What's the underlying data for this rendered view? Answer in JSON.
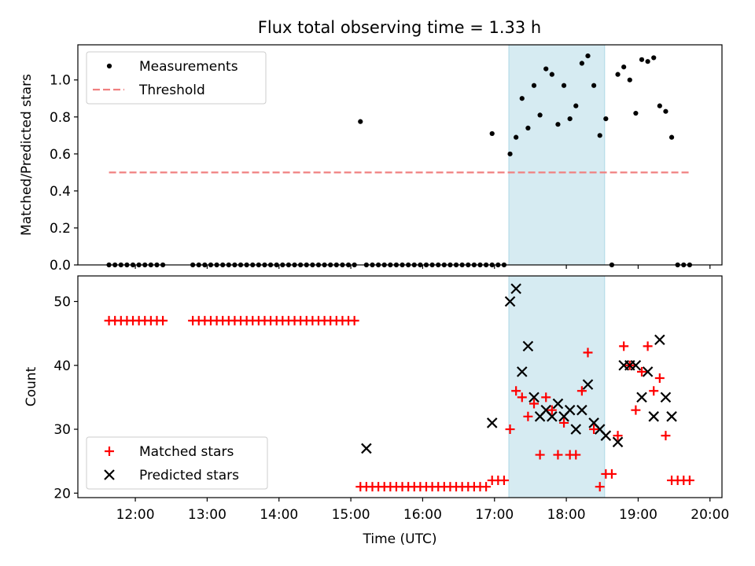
{
  "figure": {
    "title": "Flux total observing time = 1.33 h"
  },
  "chart_data": [
    {
      "type": "scatter",
      "ylabel": "Matched/Predicted stars",
      "xlabel": "",
      "xlim": [
        "11:12",
        "20:10"
      ],
      "ylim": [
        0,
        1.19
      ],
      "yticks": [
        0.0,
        0.2,
        0.4,
        0.6,
        0.8,
        1.0
      ],
      "ytick_labels": [
        "0.0",
        "0.2",
        "0.4",
        "0.6",
        "0.8",
        "1.0"
      ],
      "shaded_span": [
        "17:12",
        "18:32"
      ],
      "legend": {
        "placement": "upper left",
        "entries": [
          "Measurements",
          "Threshold"
        ]
      },
      "series": [
        {
          "name": "Measurements",
          "marker": "dot",
          "color": "#000000",
          "x": [
            "11:38",
            "11:43",
            "11:48",
            "11:53",
            "11:58",
            "12:03",
            "12:08",
            "12:13",
            "12:18",
            "12:23",
            "12:48",
            "12:53",
            "12:58",
            "13:03",
            "13:08",
            "13:13",
            "13:18",
            "13:23",
            "13:28",
            "13:33",
            "13:38",
            "13:43",
            "13:48",
            "13:53",
            "13:58",
            "14:03",
            "14:08",
            "14:13",
            "14:18",
            "14:23",
            "14:28",
            "14:33",
            "14:38",
            "14:43",
            "14:48",
            "14:53",
            "14:58",
            "15:03",
            "15:08",
            "15:13",
            "15:18",
            "15:23",
            "15:28",
            "15:33",
            "15:38",
            "15:43",
            "15:48",
            "15:53",
            "15:58",
            "16:03",
            "16:08",
            "16:13",
            "16:18",
            "16:23",
            "16:28",
            "16:33",
            "16:38",
            "16:43",
            "16:48",
            "16:53",
            "16:58",
            "17:03",
            "17:08",
            "16:58",
            "17:13",
            "17:18",
            "17:23",
            "17:28",
            "17:33",
            "17:38",
            "17:43",
            "17:48",
            "17:53",
            "17:58",
            "18:03",
            "18:08",
            "18:13",
            "18:18",
            "18:23",
            "18:28",
            "18:33",
            "18:38",
            "18:43",
            "18:48",
            "18:53",
            "18:58",
            "19:03",
            "19:08",
            "19:13",
            "19:18",
            "19:23",
            "19:28",
            "19:33",
            "19:38",
            "19:43"
          ],
          "y": [
            0,
            0,
            0,
            0,
            0,
            0,
            0,
            0,
            0,
            0,
            0,
            0,
            0,
            0,
            0,
            0,
            0,
            0,
            0,
            0,
            0,
            0,
            0,
            0,
            0,
            0,
            0,
            0,
            0,
            0,
            0,
            0,
            0,
            0,
            0,
            0,
            0,
            0,
            0.775,
            0,
            0,
            0,
            0,
            0,
            0,
            0,
            0,
            0,
            0,
            0,
            0,
            0,
            0,
            0,
            0,
            0,
            0,
            0,
            0,
            0,
            0,
            0,
            0,
            0.71,
            0.6,
            0.69,
            0.9,
            0.74,
            0.97,
            0.81,
            1.06,
            1.03,
            0.76,
            0.97,
            0.79,
            0.86,
            1.09,
            1.13,
            0.97,
            0.7,
            0.79,
            0,
            1.03,
            1.07,
            1.0,
            0.82,
            1.11,
            1.1,
            1.12,
            0.86,
            0.83,
            0.69,
            0,
            0,
            0
          ]
        },
        {
          "name": "Threshold",
          "style": "dashed-line",
          "color": "#f08080",
          "x": [
            "11:38",
            "19:43"
          ],
          "y": [
            0.5,
            0.5
          ]
        }
      ]
    },
    {
      "type": "scatter",
      "ylabel": "Count",
      "xlabel": "Time (UTC)",
      "xlim": [
        "11:12",
        "20:10"
      ],
      "ylim": [
        19.3,
        54
      ],
      "yticks": [
        20,
        30,
        40,
        50
      ],
      "ytick_labels": [
        "20",
        "30",
        "40",
        "50"
      ],
      "xticks": [
        "12:00",
        "13:00",
        "14:00",
        "15:00",
        "16:00",
        "17:00",
        "18:00",
        "19:00",
        "20:00"
      ],
      "xtick_labels": [
        "12:00",
        "13:00",
        "14:00",
        "15:00",
        "16:00",
        "17:00",
        "18:00",
        "19:00",
        "20:00"
      ],
      "shaded_span": [
        "17:12",
        "18:32"
      ],
      "legend": {
        "placement": "lower left",
        "entries": [
          "Matched stars",
          "Predicted stars"
        ]
      },
      "series": [
        {
          "name": "Matched stars",
          "marker": "plus",
          "color": "#ff0000",
          "x": [
            "11:38",
            "11:43",
            "11:48",
            "11:53",
            "11:58",
            "12:03",
            "12:08",
            "12:13",
            "12:18",
            "12:23",
            "12:48",
            "12:53",
            "12:58",
            "13:03",
            "13:08",
            "13:13",
            "13:18",
            "13:23",
            "13:28",
            "13:33",
            "13:38",
            "13:43",
            "13:48",
            "13:53",
            "13:58",
            "14:03",
            "14:08",
            "14:13",
            "14:18",
            "14:23",
            "14:28",
            "14:33",
            "14:38",
            "14:43",
            "14:48",
            "14:53",
            "14:58",
            "15:03",
            "15:08",
            "15:13",
            "15:18",
            "15:23",
            "15:28",
            "15:33",
            "15:38",
            "15:43",
            "15:48",
            "15:53",
            "15:58",
            "16:03",
            "16:08",
            "16:13",
            "16:18",
            "16:23",
            "16:28",
            "16:33",
            "16:38",
            "16:43",
            "16:48",
            "16:53",
            "16:58",
            "17:03",
            "17:08",
            "17:13",
            "17:18",
            "17:23",
            "17:28",
            "17:33",
            "17:38",
            "17:43",
            "17:48",
            "17:53",
            "17:58",
            "18:03",
            "18:08",
            "18:13",
            "18:18",
            "18:23",
            "18:28",
            "18:33",
            "18:38",
            "18:43",
            "18:48",
            "18:53",
            "18:58",
            "19:03",
            "19:08",
            "19:13",
            "19:18",
            "19:23",
            "19:28",
            "19:33",
            "19:38",
            "19:43"
          ],
          "y": [
            47,
            47,
            47,
            47,
            47,
            47,
            47,
            47,
            47,
            47,
            47,
            47,
            47,
            47,
            47,
            47,
            47,
            47,
            47,
            47,
            47,
            47,
            47,
            47,
            47,
            47,
            47,
            47,
            47,
            47,
            47,
            47,
            47,
            47,
            47,
            47,
            47,
            47,
            21,
            21,
            21,
            21,
            21,
            21,
            21,
            21,
            21,
            21,
            21,
            21,
            21,
            21,
            21,
            21,
            21,
            21,
            21,
            21,
            21,
            21,
            22,
            22,
            22,
            30,
            36,
            35,
            32,
            34,
            26,
            35,
            33,
            26,
            31,
            26,
            26,
            36,
            42,
            30,
            21,
            23,
            23,
            29,
            43,
            40,
            33,
            39,
            43,
            36,
            38,
            29,
            22,
            22,
            22,
            22
          ]
        },
        {
          "name": "Predicted stars",
          "marker": "x",
          "color": "#000000",
          "x": [
            "15:13",
            "16:58",
            "17:13",
            "17:18",
            "17:23",
            "17:28",
            "17:33",
            "17:38",
            "17:43",
            "17:48",
            "17:53",
            "17:58",
            "18:03",
            "18:08",
            "18:13",
            "18:18",
            "18:23",
            "18:28",
            "18:33",
            "18:43",
            "18:48",
            "18:53",
            "18:58",
            "19:03",
            "19:08",
            "19:13",
            "19:18",
            "19:23",
            "19:28"
          ],
          "y": [
            27,
            31,
            50,
            52,
            39,
            43,
            35,
            32,
            33,
            32,
            34,
            32,
            33,
            30,
            33,
            37,
            31,
            30,
            29,
            28,
            40,
            40,
            40,
            35,
            39,
            32,
            44,
            35,
            32
          ]
        }
      ]
    }
  ]
}
